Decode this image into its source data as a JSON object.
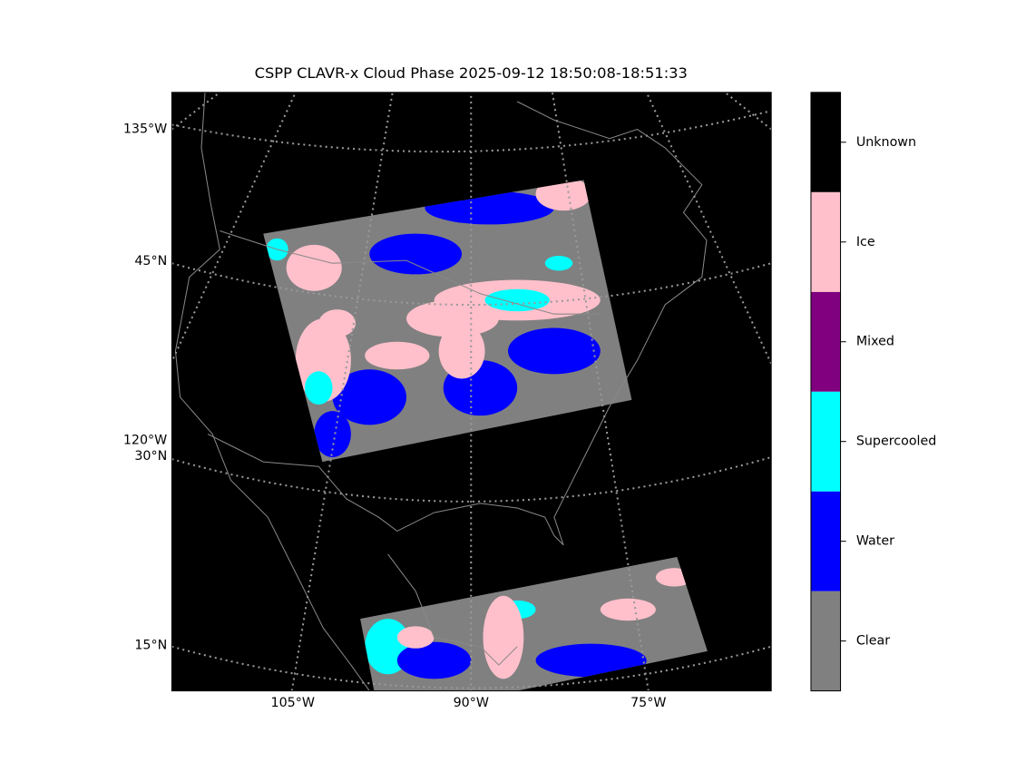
{
  "title": "CSPP CLAVR-x Cloud Phase 2025-09-12 18:50:08-18:51:33",
  "map": {
    "lon_labels": [
      "105°W",
      "90°W",
      "75°W"
    ],
    "lat_labels": [
      "135°W",
      "45°N",
      "120°W",
      "30°N",
      "15°N"
    ]
  },
  "colorbar": {
    "classes": [
      {
        "name": "Clear",
        "color": "#808080"
      },
      {
        "name": "Water",
        "color": "#0000ff"
      },
      {
        "name": "Supercooled",
        "color": "#00ffff"
      },
      {
        "name": "Mixed",
        "color": "#800080"
      },
      {
        "name": "Ice",
        "color": "#ffc0cb"
      },
      {
        "name": "Unknown",
        "color": "#000000"
      }
    ]
  }
}
